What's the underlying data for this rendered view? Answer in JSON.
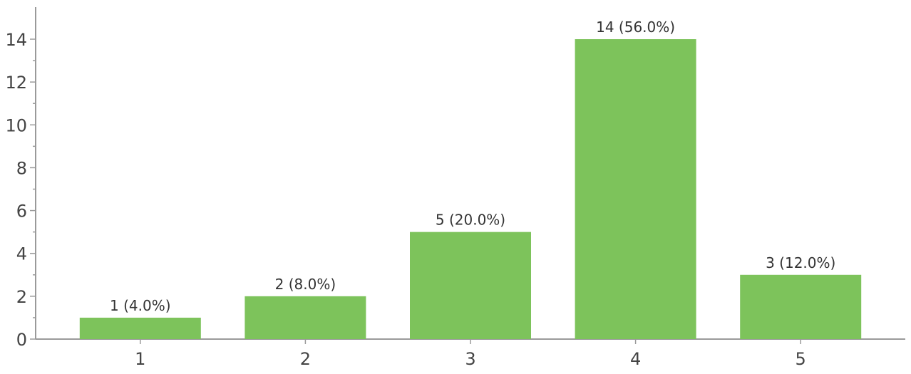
{
  "chart_data": {
    "type": "bar",
    "categories": [
      "1",
      "2",
      "3",
      "4",
      "5"
    ],
    "values": [
      1,
      2,
      5,
      14,
      3
    ],
    "data_labels": [
      "1 (4.0%)",
      "2 (8.0%)",
      "5 (20.0%)",
      "14 (56.0%)",
      "3 (12.0%)"
    ],
    "y_ticks": [
      0,
      2,
      4,
      6,
      8,
      10,
      12,
      14
    ],
    "ylim": [
      0,
      15
    ],
    "title": "",
    "xlabel": "",
    "ylabel": "",
    "grid": false,
    "legend": "none",
    "bar_color": "#7dc35b",
    "axis_color": "#9a9a9a"
  }
}
